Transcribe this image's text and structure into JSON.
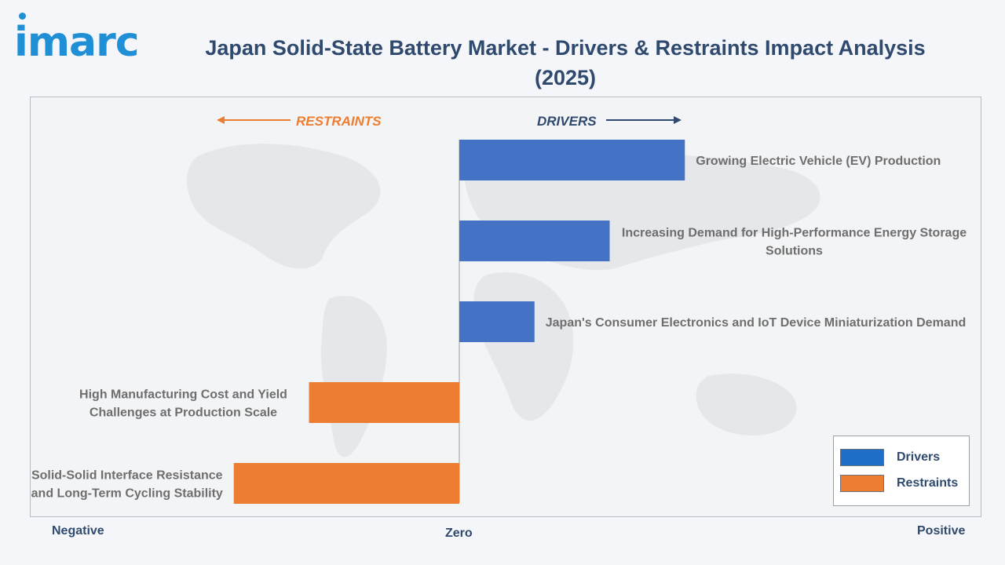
{
  "header": {
    "logo_text": "imarc",
    "title": "Japan Solid-State Battery Market - Drivers & Restraints Impact Analysis (2025)"
  },
  "direction_labels": {
    "restraints": "RESTRAINTS",
    "drivers": "DRIVERS"
  },
  "axis_labels": {
    "negative": "Negative",
    "zero": "Zero",
    "positive": "Positive"
  },
  "legend": {
    "items": [
      {
        "label": "Drivers",
        "color": "#1f6fc9"
      },
      {
        "label": "Restraints",
        "color": "#ed7d31"
      }
    ]
  },
  "colors": {
    "drivers": "#4472c4",
    "restraints": "#ed7d31",
    "text": "#6e6e6e",
    "title": "#2f4a6e"
  },
  "chart_data": {
    "type": "bar",
    "orientation": "horizontal",
    "title": "Japan Solid-State Battery Market - Drivers & Restraints Impact Analysis (2025)",
    "xlabel": "",
    "ylabel": "",
    "xlim": [
      -3,
      3
    ],
    "grid": false,
    "legend_position": "bottom-right",
    "categories": [
      "Growing Electric Vehicle (EV) Production",
      "Increasing Demand for High-Performance Energy Storage Solutions",
      "Japan's Consumer Electronics and IoT Device Miniaturization Demand",
      "High Manufacturing Cost and Yield Challenges at Production Scale",
      "Solid-Solid Interface Resistance and Long-Term Cycling Stability"
    ],
    "series": [
      {
        "name": "Drivers",
        "values": [
          1.5,
          1.0,
          0.5,
          null,
          null
        ]
      },
      {
        "name": "Restraints",
        "values": [
          null,
          null,
          null,
          -1.0,
          -1.5
        ]
      }
    ]
  }
}
